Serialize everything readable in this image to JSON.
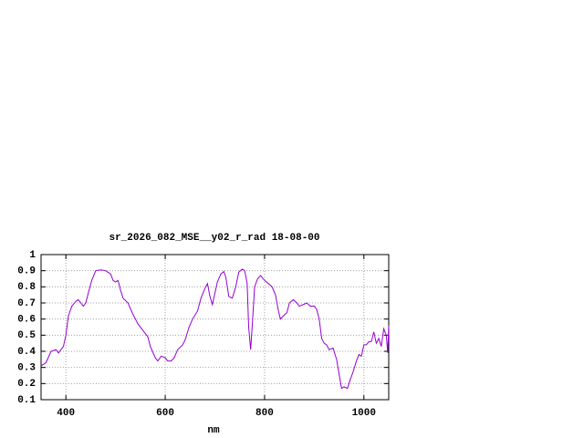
{
  "chart_data": {
    "type": "line",
    "title": "sr_2026_082_MSE__y02_r_rad 18-08-00",
    "xlabel": "nm",
    "color": "#9400d3",
    "x": [
      350,
      360,
      370,
      380,
      385,
      395,
      400,
      405,
      412,
      420,
      425,
      430,
      435,
      440,
      445,
      452,
      460,
      470,
      480,
      490,
      495,
      500,
      505,
      510,
      515,
      525,
      535,
      545,
      555,
      565,
      570,
      580,
      585,
      592,
      600,
      605,
      612,
      618,
      625,
      635,
      640,
      648,
      655,
      665,
      672,
      680,
      685,
      690,
      695,
      700,
      705,
      712,
      718,
      722,
      728,
      735,
      742,
      748,
      755,
      760,
      765,
      768,
      772,
      775,
      780,
      786,
      792,
      800,
      808,
      815,
      822,
      828,
      832,
      838,
      845,
      850,
      858,
      865,
      870,
      878,
      885,
      892,
      900,
      905,
      910,
      915,
      920,
      925,
      930,
      938,
      945,
      950,
      955,
      960,
      967,
      972,
      978,
      985,
      990,
      995,
      1000,
      1005,
      1010,
      1015,
      1020,
      1025,
      1030,
      1035,
      1040,
      1045,
      1048,
      1050
    ],
    "values": [
      0.31,
      0.33,
      0.4,
      0.41,
      0.39,
      0.43,
      0.5,
      0.62,
      0.68,
      0.71,
      0.72,
      0.7,
      0.68,
      0.7,
      0.76,
      0.84,
      0.9,
      0.905,
      0.9,
      0.88,
      0.84,
      0.83,
      0.84,
      0.78,
      0.73,
      0.7,
      0.63,
      0.57,
      0.53,
      0.49,
      0.43,
      0.36,
      0.34,
      0.37,
      0.36,
      0.34,
      0.34,
      0.36,
      0.41,
      0.44,
      0.47,
      0.55,
      0.6,
      0.65,
      0.73,
      0.79,
      0.82,
      0.74,
      0.69,
      0.76,
      0.83,
      0.88,
      0.895,
      0.86,
      0.74,
      0.73,
      0.8,
      0.89,
      0.91,
      0.9,
      0.82,
      0.55,
      0.41,
      0.55,
      0.8,
      0.85,
      0.87,
      0.84,
      0.82,
      0.8,
      0.75,
      0.65,
      0.6,
      0.62,
      0.64,
      0.7,
      0.72,
      0.7,
      0.68,
      0.69,
      0.7,
      0.68,
      0.68,
      0.66,
      0.6,
      0.48,
      0.45,
      0.44,
      0.41,
      0.42,
      0.35,
      0.26,
      0.17,
      0.18,
      0.17,
      0.22,
      0.27,
      0.34,
      0.38,
      0.37,
      0.44,
      0.44,
      0.46,
      0.46,
      0.52,
      0.45,
      0.48,
      0.43,
      0.54,
      0.5,
      0.39,
      0.56
    ],
    "xlim": [
      350,
      1050
    ],
    "xticks": [
      400,
      600,
      800,
      1000
    ],
    "ylim": [
      0.1,
      1
    ],
    "yticks": [
      0.1,
      0.2,
      0.3,
      0.4,
      0.5,
      0.6,
      0.7,
      0.8,
      0.9,
      1
    ],
    "grid": true
  }
}
